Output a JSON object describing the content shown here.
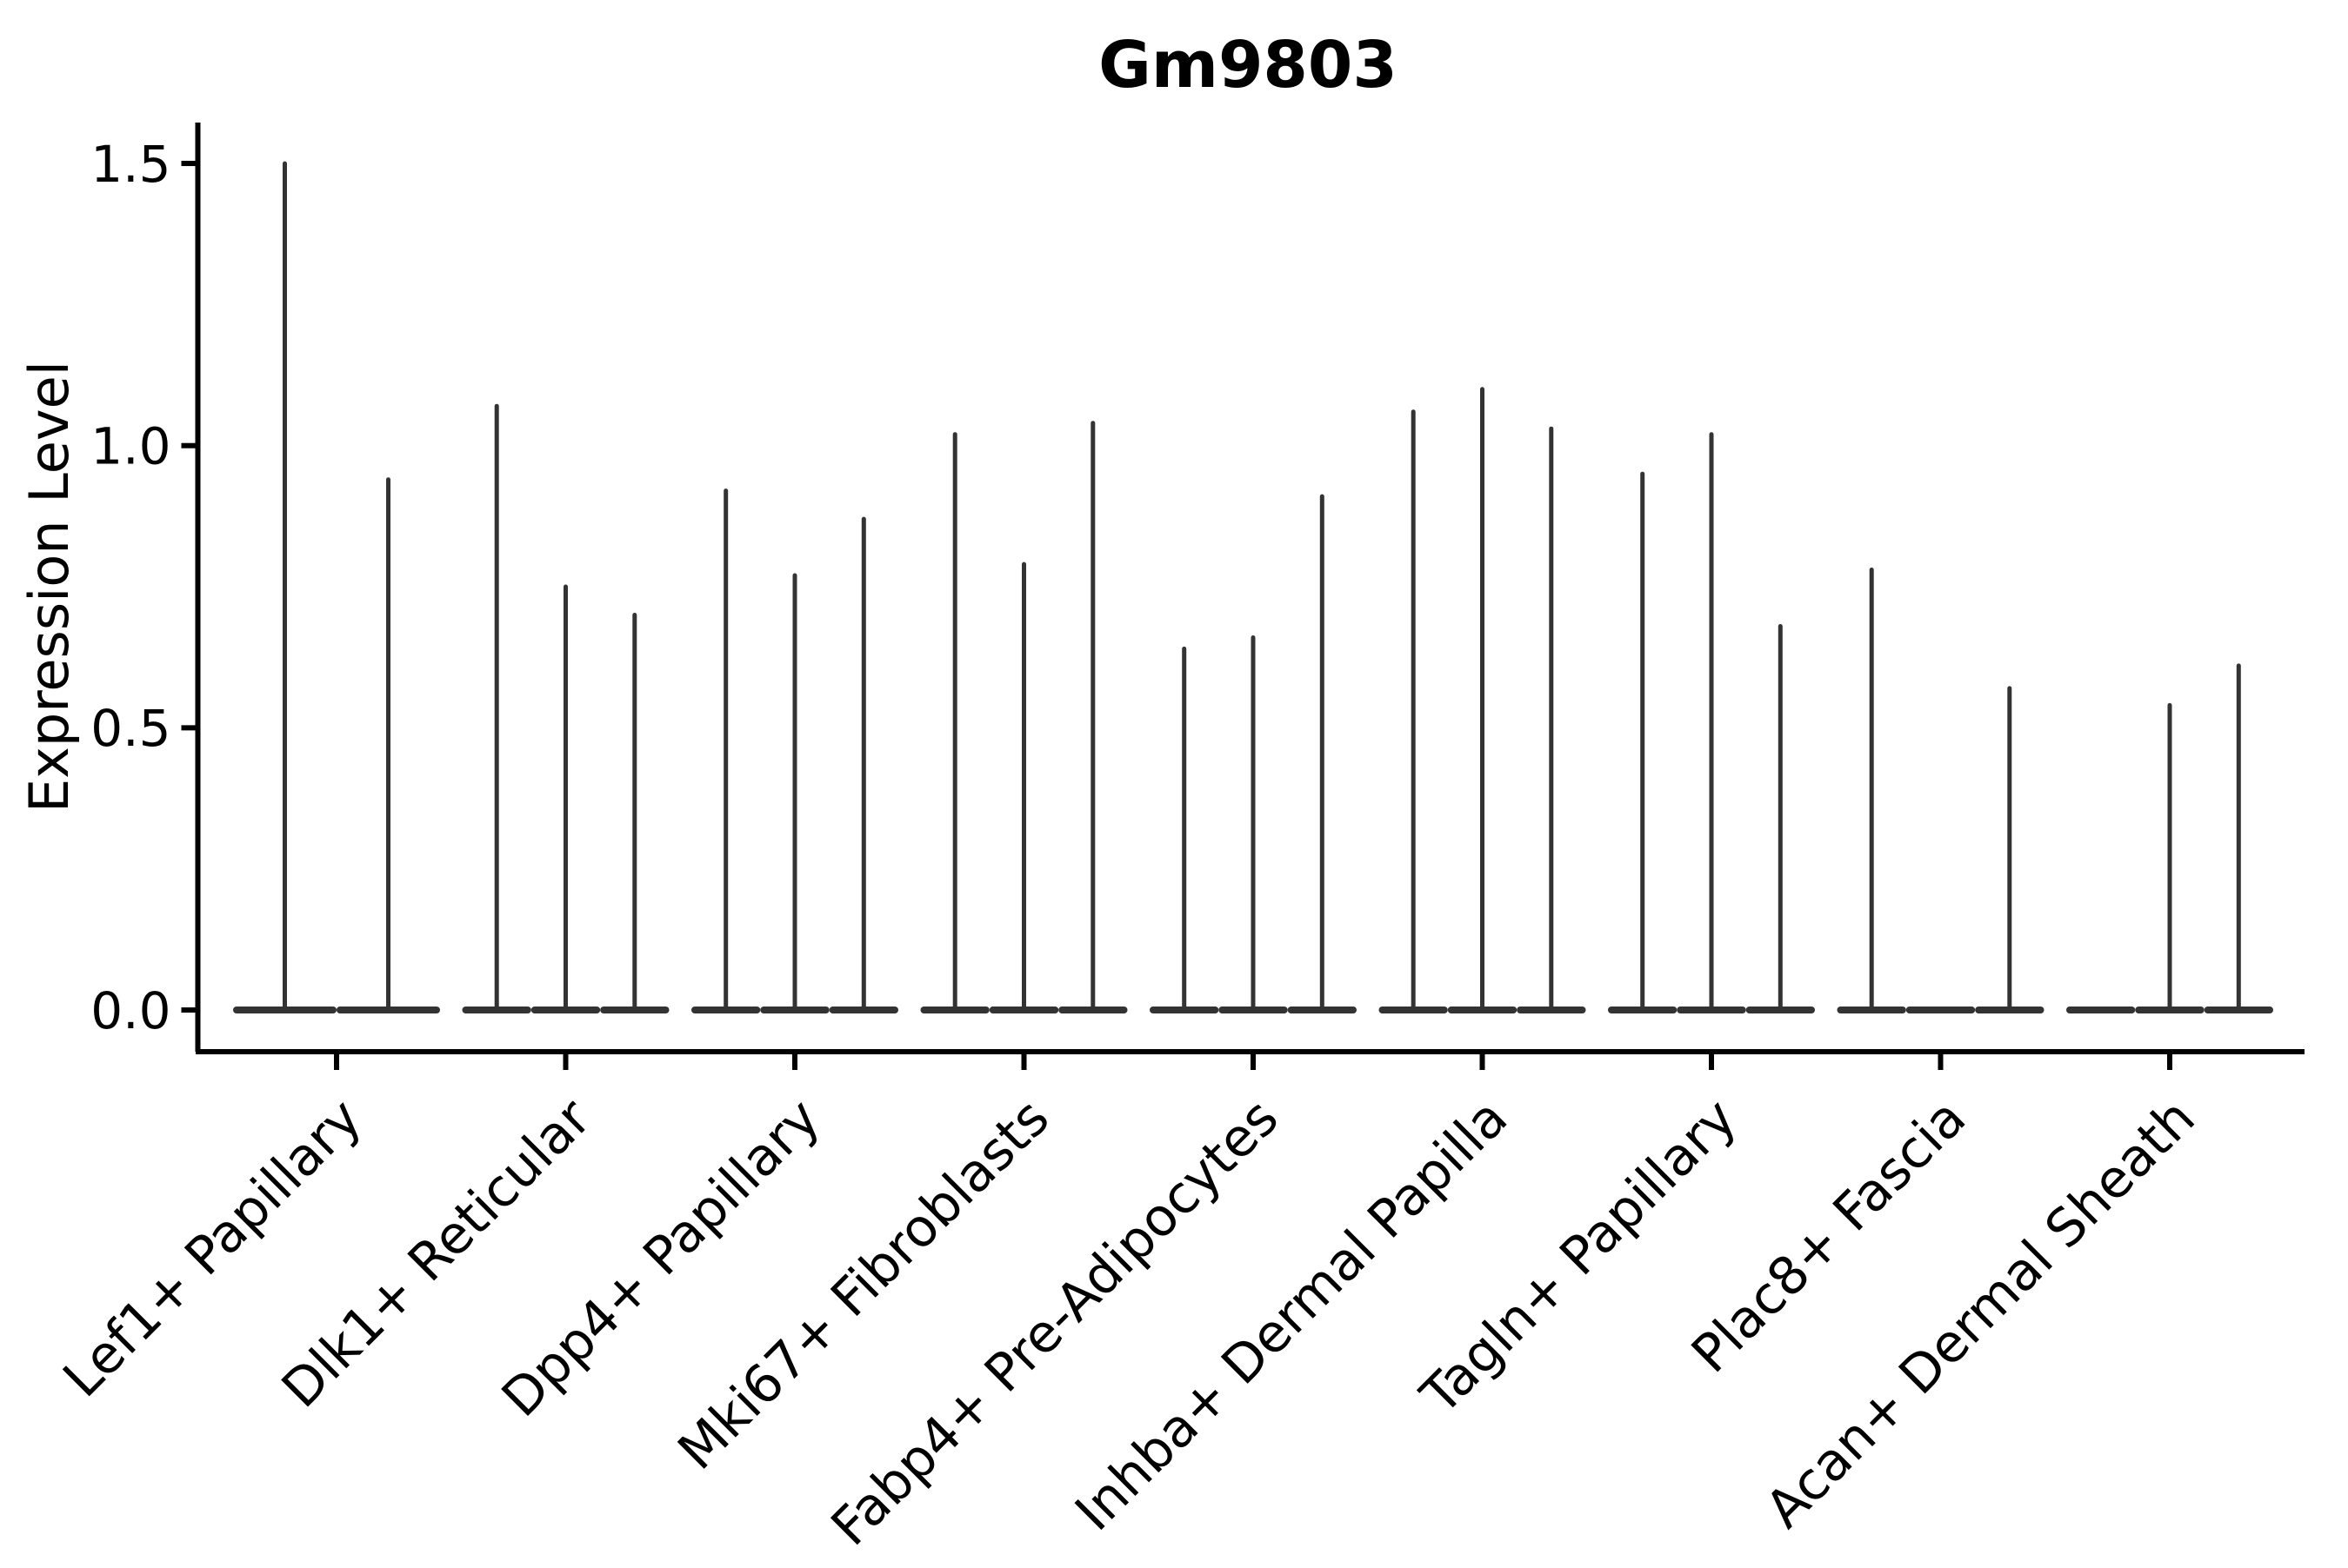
{
  "figure": {
    "title": "Gm9803",
    "y_axis": {
      "label": "Expression Level",
      "tick_labels": [
        "0.0",
        "0.5",
        "1.0",
        "1.5"
      ],
      "tick_values": [
        0.0,
        0.5,
        1.0,
        1.5
      ]
    },
    "colors": {
      "violin": "#333333",
      "axis": "#000000",
      "background": "#ffffff",
      "text": "#000000"
    }
  },
  "chart_data": {
    "type": "violin",
    "title": "Gm9803",
    "xlabel": "",
    "ylabel": "Expression Level",
    "ylim": [
      0,
      1.5
    ],
    "grid": false,
    "legend": false,
    "description": "Stacked-violin style expression plot; each cluster has 2-3 dodged violins that are flat at 0 with a thin spike up to the max expression value. Violins with max 0 are flat baselines only.",
    "categories": [
      "Lef1+ Papillary",
      "Dlk1+ Reticular",
      "Dpp4+ Papillary",
      "Mki67+ Fibroblasts",
      "Fabp4+ Pre-Adipocytes",
      "Inhba+ Dermal Papilla",
      "Tagln+ Papillary",
      "Plac8+ Fascia",
      "Acan+ Dermal Sheath"
    ],
    "groups": [
      {
        "category": "Lef1+ Papillary",
        "violin_max_values": [
          1.5,
          0.94
        ]
      },
      {
        "category": "Dlk1+ Reticular",
        "violin_max_values": [
          1.07,
          0.75,
          0.7
        ]
      },
      {
        "category": "Dpp4+ Papillary",
        "violin_max_values": [
          0.92,
          0.77,
          0.87
        ]
      },
      {
        "category": "Mki67+ Fibroblasts",
        "violin_max_values": [
          1.02,
          0.79,
          1.04
        ]
      },
      {
        "category": "Fabp4+ Pre-Adipocytes",
        "violin_max_values": [
          0.64,
          0.66,
          0.91
        ]
      },
      {
        "category": "Inhba+ Dermal Papilla",
        "violin_max_values": [
          1.06,
          1.1,
          1.03
        ]
      },
      {
        "category": "Tagln+ Papillary",
        "violin_max_values": [
          0.95,
          1.02,
          0.68
        ]
      },
      {
        "category": "Plac8+ Fascia",
        "violin_max_values": [
          0.78,
          0,
          0.57
        ]
      },
      {
        "category": "Acan+ Dermal Sheath",
        "violin_max_values": [
          0,
          0.54,
          0.61
        ]
      }
    ]
  }
}
